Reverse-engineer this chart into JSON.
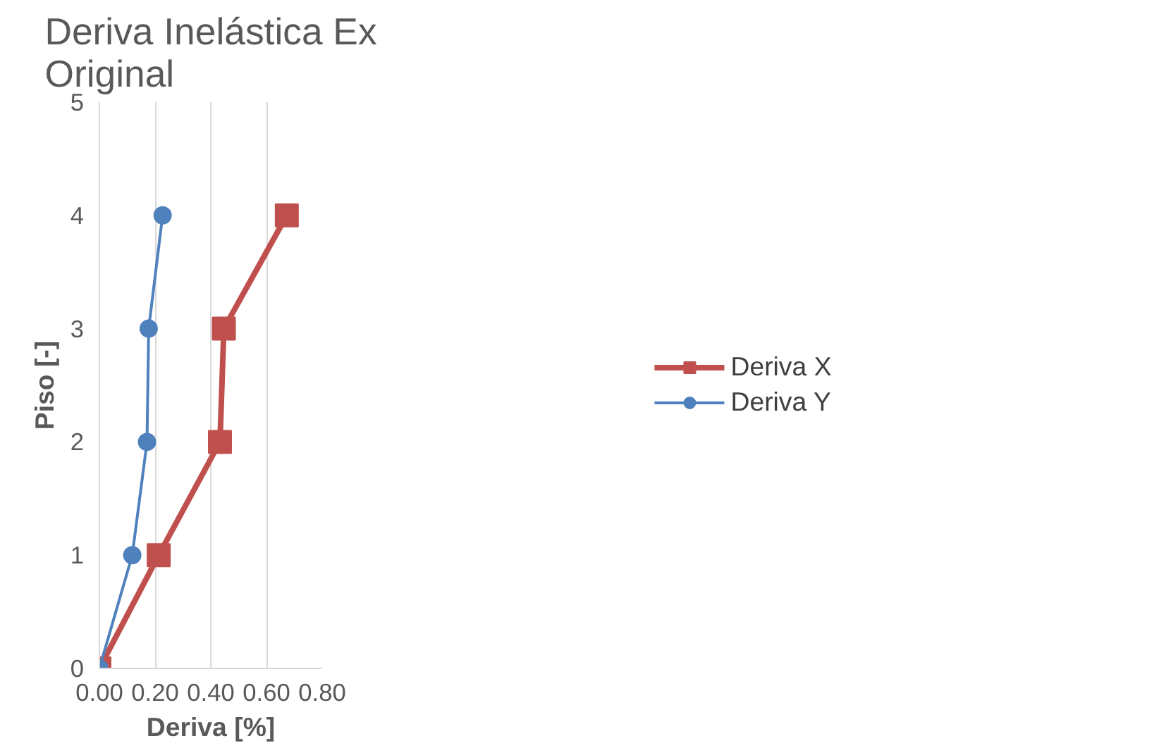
{
  "chart_data": {
    "type": "line",
    "title": "Deriva Inelástica Ex\nOriginal",
    "xlabel": "Deriva [%]",
    "ylabel": "Piso [-]",
    "series": [
      {
        "name": "Deriva X",
        "color": "#c0504d",
        "marker": "square",
        "x": [
          0,
          0.213,
          0.433,
          0.447,
          0.673
        ],
        "values": [
          0,
          1,
          2,
          3,
          4
        ]
      },
      {
        "name": "Deriva Y",
        "color": "#4f81bd",
        "marker": "circle",
        "x": [
          0,
          0.118,
          0.171,
          0.177,
          0.227
        ],
        "values": [
          0,
          1,
          2,
          3,
          4
        ]
      }
    ],
    "xlim": [
      0,
      0.8
    ],
    "xticks": [
      {
        "value": 0,
        "label": "0.00"
      },
      {
        "value": 0.2,
        "label": "0.20"
      },
      {
        "value": 0.4,
        "label": "0.40"
      },
      {
        "value": 0.6,
        "label": "0.60"
      },
      {
        "value": 0.8,
        "label": "0.80"
      }
    ],
    "ylim": [
      0,
      5
    ],
    "yticks": [
      0,
      1,
      2,
      3,
      4,
      5
    ],
    "grid": "x",
    "legend": "right",
    "line_style": "solid"
  }
}
